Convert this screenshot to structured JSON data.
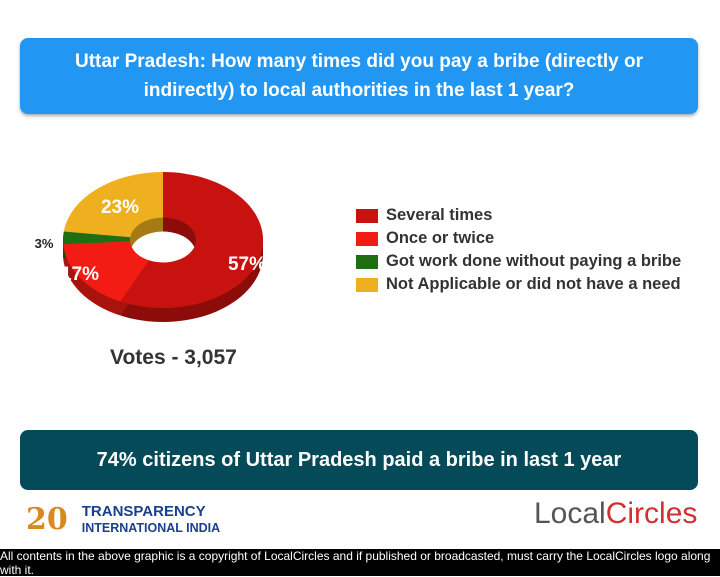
{
  "title": "Uttar Pradesh: How many times did you pay a bribe (directly or indirectly) to local authorities in the last 1 year?",
  "chart_data": {
    "type": "pie",
    "variant": "donut-3d",
    "categories": [
      "Several times",
      "Once or twice",
      "Got work done without paying a bribe",
      "Not Applicable or did not have a need"
    ],
    "values": [
      57,
      17,
      3,
      23
    ],
    "labels": [
      "57%",
      "17%",
      "3%",
      "23%"
    ],
    "colors": [
      "#c8120f",
      "#f21c14",
      "#1f6e12",
      "#eeb01e"
    ],
    "legend": "right"
  },
  "votes": "Votes - 3,057",
  "banner": "74% citizens of Uttar Pradesh paid a bribe in last 1 year",
  "logos": {
    "ti_number": "20",
    "ti_line1": "TRANSPARENCY",
    "ti_line2": "INTERNATIONAL INDIA",
    "lc_a": "Local",
    "lc_b": "Circles"
  },
  "footer": "All contents in the above graphic is a copyright of LocalCircles and if published or broadcasted, must carry the LocalCircles logo along with it."
}
